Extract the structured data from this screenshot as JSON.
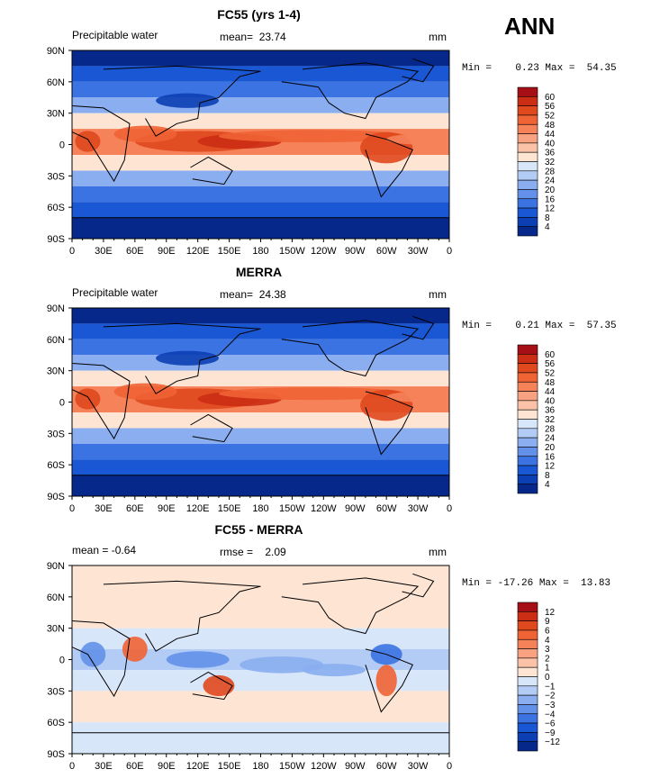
{
  "season_label": "ANN",
  "lon_ticks": [
    "0",
    "30E",
    "60E",
    "90E",
    "120E",
    "150E",
    "180",
    "150W",
    "120W",
    "90W",
    "60W",
    "30W",
    "0"
  ],
  "lat_ticks": [
    "90N",
    "60N",
    "30N",
    "0",
    "30S",
    "60S",
    "90S"
  ],
  "panels": [
    {
      "title": "FC55 (yrs 1-4)",
      "left_label": "Precipitable water",
      "center_label": "mean=  23.74",
      "right_label": "mm",
      "minmax": "Min =    0.23 Max =  54.35",
      "colorbar_labels": [
        "60",
        "56",
        "52",
        "48",
        "44",
        "40",
        "36",
        "32",
        "28",
        "24",
        "20",
        "16",
        "12",
        "8",
        "4"
      ],
      "colorbar_colors": [
        "#a50f15",
        "#cb2e14",
        "#e0481d",
        "#ef6334",
        "#f6825a",
        "#f9a282",
        "#fbc2a7",
        "#fde4d3",
        "#d8e6f9",
        "#b3ccf5",
        "#8aaef0",
        "#6391ea",
        "#3b73e2",
        "#1a57d4",
        "#0c3fb4",
        "#05288a"
      ],
      "chart_data": {
        "type": "heatmap",
        "variable": "Precipitable water",
        "units": "mm",
        "mean": 23.74,
        "min": 0.23,
        "max": 54.35,
        "levels": [
          4,
          8,
          12,
          16,
          20,
          24,
          28,
          32,
          36,
          40,
          44,
          48,
          52,
          56,
          60
        ]
      }
    },
    {
      "title": "MERRA",
      "left_label": "Precipitable water",
      "center_label": "mean=  24.38",
      "right_label": "mm",
      "minmax": "Min =    0.21 Max =  57.35",
      "colorbar_labels": [
        "60",
        "56",
        "52",
        "48",
        "44",
        "40",
        "36",
        "32",
        "28",
        "24",
        "20",
        "16",
        "12",
        "8",
        "4"
      ],
      "colorbar_colors": [
        "#a50f15",
        "#cb2e14",
        "#e0481d",
        "#ef6334",
        "#f6825a",
        "#f9a282",
        "#fbc2a7",
        "#fde4d3",
        "#d8e6f9",
        "#b3ccf5",
        "#8aaef0",
        "#6391ea",
        "#3b73e2",
        "#1a57d4",
        "#0c3fb4",
        "#05288a"
      ],
      "chart_data": {
        "type": "heatmap",
        "variable": "Precipitable water",
        "units": "mm",
        "mean": 24.38,
        "min": 0.21,
        "max": 57.35,
        "levels": [
          4,
          8,
          12,
          16,
          20,
          24,
          28,
          32,
          36,
          40,
          44,
          48,
          52,
          56,
          60
        ]
      }
    },
    {
      "title": "FC55 - MERRA",
      "left_label": "mean =   -0.64",
      "center_label": "rmse =    2.09",
      "right_label": "mm",
      "minmax": "Min = -17.26 Max =  13.83",
      "colorbar_labels": [
        "12",
        "9",
        "6",
        "4",
        "3",
        "2",
        "1",
        "0",
        "−1",
        "−2",
        "−3",
        "−4",
        "−6",
        "−9",
        "−12"
      ],
      "colorbar_colors": [
        "#a50f15",
        "#cb2e14",
        "#e0481d",
        "#ef6334",
        "#f6825a",
        "#f9a282",
        "#fbc2a7",
        "#fde4d3",
        "#d8e6f9",
        "#b3ccf5",
        "#8aaef0",
        "#6391ea",
        "#3b73e2",
        "#1a57d4",
        "#0c3fb4",
        "#05288a"
      ],
      "chart_data": {
        "type": "heatmap",
        "variable": "FC55 - MERRA",
        "units": "mm",
        "mean": -0.64,
        "rmse": 2.09,
        "min": -17.26,
        "max": 13.83,
        "levels": [
          -12,
          -9,
          -6,
          -4,
          -3,
          -2,
          -1,
          0,
          1,
          2,
          3,
          4,
          6,
          9,
          12
        ]
      }
    }
  ]
}
